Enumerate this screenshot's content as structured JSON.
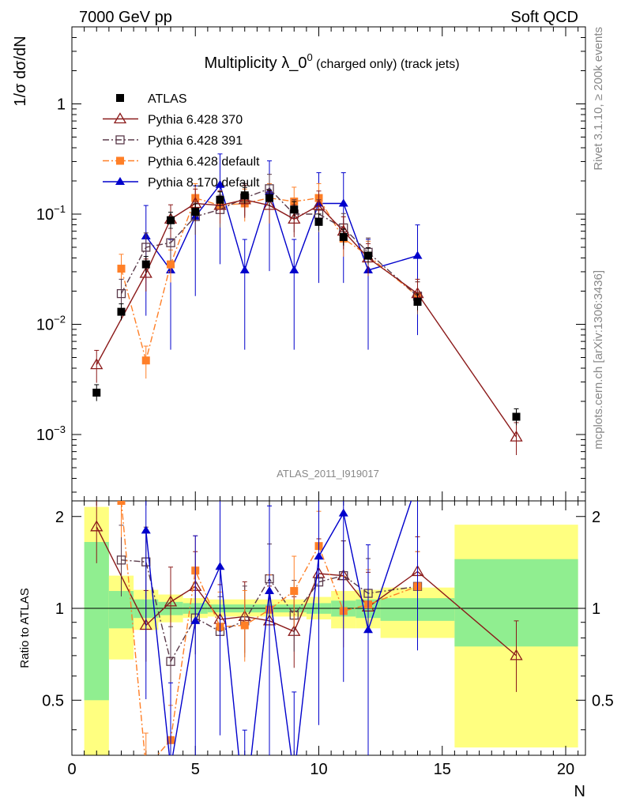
{
  "header": {
    "left": "7000 GeV pp",
    "right": "Soft QCD"
  },
  "side": {
    "rivet": "Rivet 3.1.10, ≥ 200k events",
    "site": "mcplots.cern.ch [arXiv:1306:3436]"
  },
  "analysis_id": "ATLAS_2011_I919017",
  "chart_data": [
    {
      "type": "scatter",
      "title": "Multiplicity λ_0",
      "title_sup": "0",
      "title_suffix": " (charged only) (track jets)",
      "ylabel": "1/σ dσ/dN",
      "yscale": "log",
      "ylim": [
        0.00025,
        5
      ],
      "xlim": [
        0,
        20.8
      ],
      "y_tick_labels": [
        {
          "value": 0.001,
          "base": "10",
          "exp": "−3"
        },
        {
          "value": 0.01,
          "base": "10",
          "exp": "−2"
        },
        {
          "value": 0.1,
          "base": "10",
          "exp": "−1"
        },
        {
          "value": 1,
          "base": "1",
          "exp": ""
        }
      ],
      "legend_position": "top-left",
      "series": [
        {
          "name": "ATLAS",
          "color": "#000000",
          "marker": "filled-square",
          "line": "none",
          "x": [
            1,
            2,
            3,
            4,
            5,
            6,
            7,
            8,
            9,
            10,
            11,
            12,
            14,
            18
          ],
          "y": [
            0.0024,
            0.013,
            0.035,
            0.088,
            0.105,
            0.135,
            0.148,
            0.14,
            0.11,
            0.085,
            0.062,
            0.042,
            0.016,
            0.00145
          ]
        },
        {
          "name": "Pythia 6.428 370",
          "color": "#8b1a1a",
          "marker": "open-triangle",
          "line": "solid",
          "x": [
            1,
            3,
            4,
            5,
            6,
            7,
            8,
            9,
            10,
            11,
            12,
            14,
            18
          ],
          "y": [
            0.0043,
            0.029,
            0.09,
            0.125,
            0.12,
            0.135,
            0.12,
            0.09,
            0.12,
            0.07,
            0.04,
            0.019,
            0.00095
          ],
          "err": [
            0.0045,
            null,
            null,
            null,
            null,
            null,
            null,
            null,
            null,
            null,
            null,
            null,
            null
          ]
        },
        {
          "name": "Pythia 6.428 391",
          "color": "#5a3a4a",
          "marker": "open-square",
          "line": "dashdot",
          "x": [
            2,
            3,
            4,
            5,
            6,
            7,
            8,
            9,
            10,
            11,
            12,
            14
          ],
          "y": [
            0.019,
            0.05,
            0.055,
            0.095,
            0.11,
            0.14,
            0.17,
            0.1,
            0.1,
            0.075,
            0.045,
            0.018
          ]
        },
        {
          "name": "Pythia 6.428 default",
          "color": "#ff7f27",
          "marker": "filled-square",
          "line": "dashdot",
          "x": [
            2,
            3,
            4,
            5,
            6,
            7,
            8,
            9,
            10,
            11,
            12,
            14
          ],
          "y": [
            0.032,
            0.0047,
            0.035,
            0.14,
            0.12,
            0.125,
            0.14,
            0.13,
            0.14,
            0.06,
            0.042,
            0.018
          ]
        },
        {
          "name": "Pythia 8.170 default",
          "color": "#0000cc",
          "marker": "filled-triangle",
          "line": "solid",
          "x": [
            3,
            4,
            5,
            6,
            7,
            8,
            9,
            10,
            11,
            12,
            14
          ],
          "y": [
            0.063,
            0.031,
            0.095,
            0.185,
            0.031,
            0.16,
            0.031,
            0.125,
            0.125,
            0.031,
            0.042
          ]
        }
      ]
    },
    {
      "type": "line",
      "xlabel": "N",
      "ylabel": "Ratio to ATLAS",
      "ylim": [
        0.33,
        2.25
      ],
      "xlim": [
        0,
        20.8
      ],
      "reference_line": 1,
      "x_ticks": [
        0,
        5,
        10,
        15,
        20
      ],
      "y_ticks": [
        0.5,
        1,
        2
      ],
      "band_colors": {
        "inner": "#90ee90",
        "outer": "#ffff80"
      },
      "bands": [
        {
          "x0": 0.5,
          "x1": 1.5,
          "inner": [
            0.5,
            1.65
          ],
          "outer": [
            0.33,
            2.15
          ]
        },
        {
          "x0": 1.5,
          "x1": 2.5,
          "inner": [
            0.86,
            1.14
          ],
          "outer": [
            0.68,
            1.28
          ]
        },
        {
          "x0": 2.5,
          "x1": 3.5,
          "inner": [
            0.93,
            1.07
          ],
          "outer": [
            0.85,
            1.15
          ]
        },
        {
          "x0": 3.5,
          "x1": 4.5,
          "inner": [
            0.95,
            1.05
          ],
          "outer": [
            0.9,
            1.11
          ]
        },
        {
          "x0": 4.5,
          "x1": 5.5,
          "inner": [
            0.96,
            1.04
          ],
          "outer": [
            0.93,
            1.08
          ]
        },
        {
          "x0": 5.5,
          "x1": 9.5,
          "inner": [
            0.97,
            1.03
          ],
          "outer": [
            0.94,
            1.07
          ]
        },
        {
          "x0": 9.5,
          "x1": 10.5,
          "inner": [
            0.96,
            1.04
          ],
          "outer": [
            0.92,
            1.09
          ]
        },
        {
          "x0": 10.5,
          "x1": 11.5,
          "inner": [
            0.94,
            1.06
          ],
          "outer": [
            0.86,
            1.14
          ]
        },
        {
          "x0": 11.5,
          "x1": 12.5,
          "inner": [
            0.93,
            1.07
          ],
          "outer": [
            0.86,
            1.15
          ]
        },
        {
          "x0": 12.5,
          "x1": 15.5,
          "inner": [
            0.91,
            1.08
          ],
          "outer": [
            0.8,
            1.17
          ]
        },
        {
          "x0": 15.5,
          "x1": 20.5,
          "inner": [
            0.75,
            1.45
          ],
          "outer": [
            0.35,
            1.88
          ]
        }
      ],
      "series": [
        {
          "name": "Pythia 6.428 370",
          "x": [
            1,
            3,
            4,
            5,
            6,
            7,
            8,
            9,
            10,
            11,
            12,
            14,
            18
          ],
          "y": [
            1.85,
            0.88,
            1.05,
            1.18,
            0.92,
            0.94,
            0.91,
            0.84,
            1.3,
            1.28,
            1.01,
            1.32,
            0.7
          ]
        },
        {
          "name": "Pythia 6.428 391",
          "x": [
            2,
            3,
            4,
            5,
            6,
            7,
            8,
            9,
            10,
            11,
            12,
            14
          ],
          "y": [
            1.44,
            1.42,
            0.67,
            0.93,
            0.84,
            0.91,
            1.25,
            0.95,
            1.22,
            1.28,
            1.12,
            1.18
          ]
        },
        {
          "name": "Pythia 6.428 default",
          "x": [
            2,
            3,
            4,
            5,
            6,
            7,
            8,
            9,
            10,
            11,
            12,
            14
          ],
          "y": [
            2.25,
            0.3,
            0.37,
            1.33,
            0.87,
            0.88,
            0.99,
            1.14,
            1.6,
            0.98,
            1.03,
            1.18
          ]
        },
        {
          "name": "Pythia 8.170 default",
          "x": [
            3,
            4,
            5,
            6,
            7,
            8,
            9,
            10,
            11,
            12,
            14
          ],
          "y": [
            1.8,
            0.3,
            0.91,
            1.37,
            0.21,
            1.14,
            0.28,
            1.48,
            2.05,
            0.85,
            2.6
          ]
        }
      ]
    }
  ]
}
